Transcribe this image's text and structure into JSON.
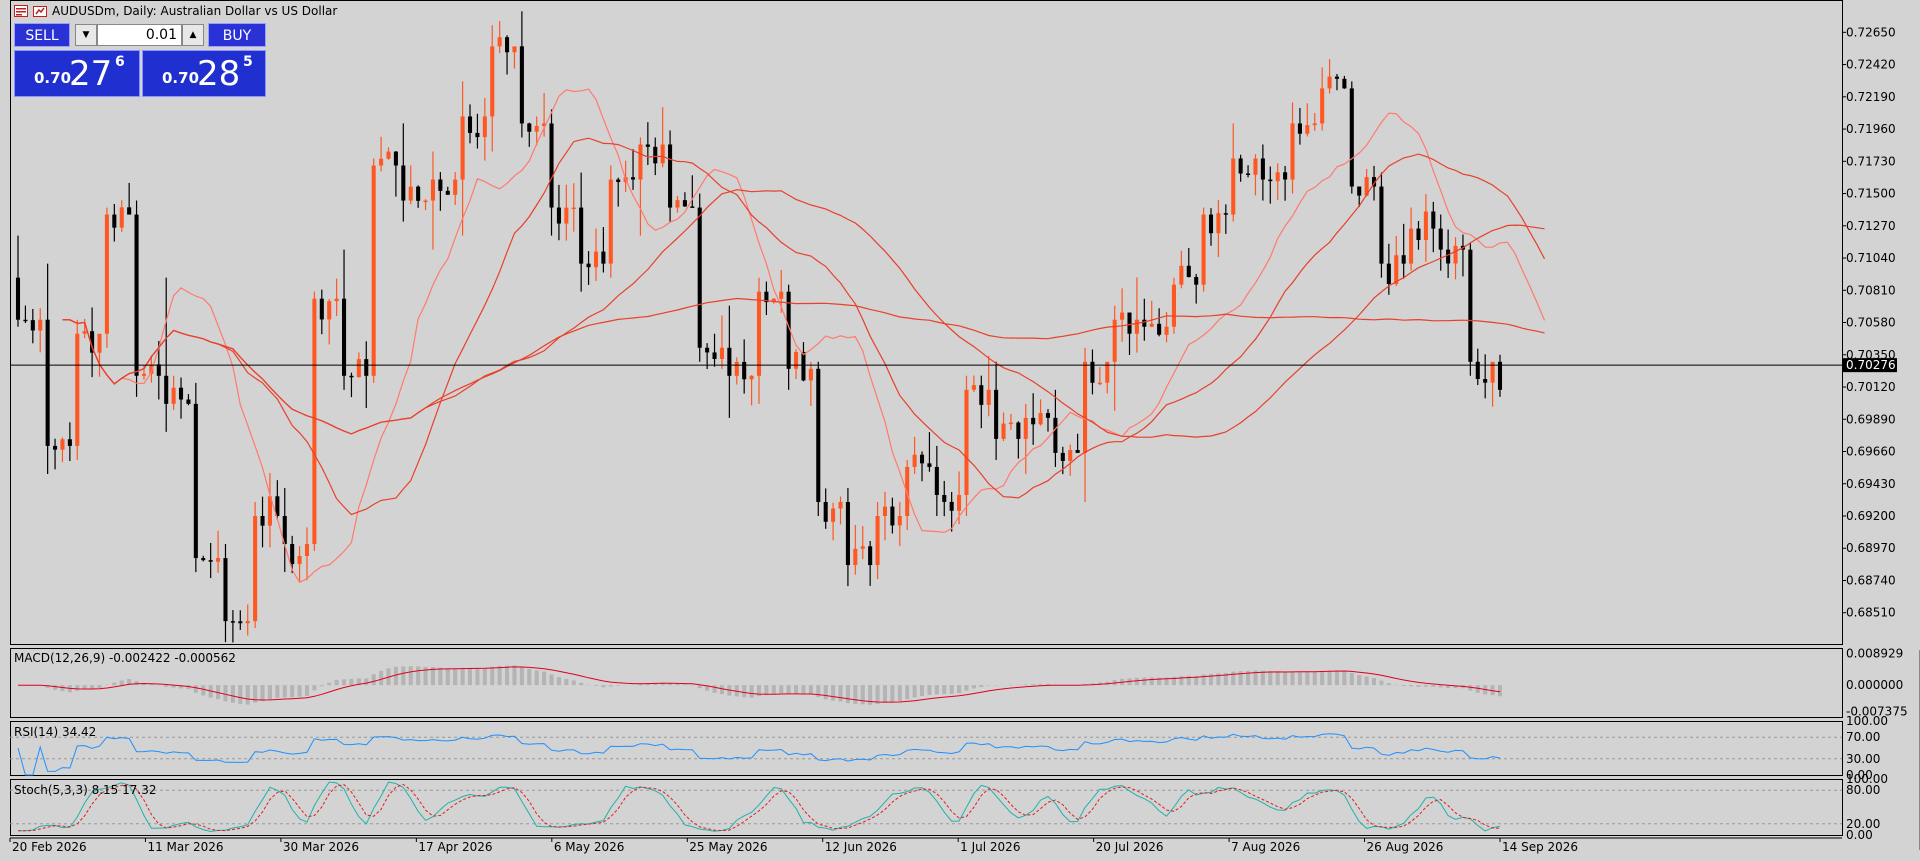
{
  "title_bar": {
    "symbol_title": "AUDUSDm, Daily:  Australian Dollar vs US Dollar",
    "icons": [
      "chart-window-icon",
      "symbol-info-icon"
    ]
  },
  "trade_panel": {
    "sell_label": "SELL",
    "buy_label": "BUY",
    "lot_value": "0.01",
    "lot_down_icon": "triangle-down",
    "lot_up_icon": "triangle-up",
    "sell_price": {
      "prefix": "0.70",
      "big": "27",
      "sup": "6"
    },
    "buy_price": {
      "prefix": "0.70",
      "big": "28",
      "sup": "5"
    }
  },
  "current_price_label": "0.70276",
  "colors": {
    "background": "#d3d3d3",
    "bull_candle": "#ff5722",
    "bear_candle": "#000000",
    "ma_line": "#e8402a",
    "ma_fast_line": "#ff7a6e",
    "macd_histogram": "#b4b4b4",
    "macd_signal": "#e0001a",
    "rsi_line": "#1e90ff",
    "stoch_main": "#20b2aa",
    "stoch_signal": "#e02020"
  },
  "price_axis": {
    "labels": [
      "0.72650",
      "0.72420",
      "0.72190",
      "0.71960",
      "0.71730",
      "0.71500",
      "0.71270",
      "0.71040",
      "0.70810",
      "0.70580",
      "0.70350",
      "0.70120",
      "0.69890",
      "0.69660",
      "0.69430",
      "0.69200",
      "0.68970",
      "0.68740",
      "0.68510"
    ],
    "range": [
      0.68287,
      0.72852
    ]
  },
  "date_axis": {
    "labels": [
      "20 Feb 2026",
      "11 Mar 2026",
      "30 Mar 2026",
      "17 Apr 2026",
      "6 May 2026",
      "25 May 2026",
      "12 Jun 2026",
      "1 Jul 2026",
      "20 Jul 2026",
      "7 Aug 2026",
      "26 Aug 2026",
      "14 Sep 2026"
    ]
  },
  "indicators": {
    "macd": {
      "label": "MACD(12,26,9) -0.002422 -0.000562",
      "axis_labels": [
        "0.008929",
        "0.000000",
        "-0.007375"
      ],
      "range": [
        -0.009,
        0.0105
      ]
    },
    "rsi": {
      "label": "RSI(14) 34.42",
      "axis_labels": [
        "100.00",
        "70.00",
        "30.00",
        "0.00"
      ],
      "levels": [
        70,
        30
      ],
      "range": [
        0,
        100
      ]
    },
    "stoch": {
      "label": "Stoch(5,3,3) 8.15 17.32",
      "axis_labels": [
        "100.00",
        "80.00",
        "20.00",
        "0.00"
      ],
      "levels": [
        80,
        20
      ],
      "range": [
        0,
        100
      ]
    }
  },
  "chart_data": {
    "type": "candlestick",
    "anchors": [
      [
        0.709,
        0.712,
        0.7055,
        0.706
      ],
      [
        0.706,
        0.71,
        0.695,
        0.697
      ],
      [
        0.697,
        0.706,
        0.696,
        0.705
      ],
      [
        0.705,
        0.714,
        0.704,
        0.7135
      ],
      [
        0.7135,
        0.7145,
        0.7005,
        0.702
      ],
      [
        0.702,
        0.709,
        0.698,
        0.7
      ],
      [
        0.7,
        0.7015,
        0.688,
        0.689
      ],
      [
        0.689,
        0.69,
        0.683,
        0.6845
      ],
      [
        0.6845,
        0.693,
        0.684,
        0.692
      ],
      [
        0.692,
        0.694,
        0.688,
        0.69
      ],
      [
        0.69,
        0.708,
        0.6895,
        0.7075
      ],
      [
        0.7075,
        0.711,
        0.701,
        0.702
      ],
      [
        0.702,
        0.7175,
        0.7015,
        0.717
      ],
      [
        0.717,
        0.72,
        0.713,
        0.7145
      ],
      [
        0.7145,
        0.718,
        0.711,
        0.716
      ],
      [
        0.716,
        0.723,
        0.712,
        0.7205
      ],
      [
        0.7205,
        0.727,
        0.718,
        0.7255
      ],
      [
        0.7255,
        0.728,
        0.719,
        0.72
      ],
      [
        0.72,
        0.721,
        0.712,
        0.714
      ],
      [
        0.714,
        0.7165,
        0.708,
        0.71
      ],
      [
        0.71,
        0.717,
        0.709,
        0.716
      ],
      [
        0.716,
        0.719,
        0.712,
        0.7185
      ],
      [
        0.7185,
        0.7195,
        0.713,
        0.714
      ],
      [
        0.714,
        0.715,
        0.703,
        0.704
      ],
      [
        0.704,
        0.707,
        0.699,
        0.702
      ],
      [
        0.702,
        0.709,
        0.7,
        0.708
      ],
      [
        0.708,
        0.7085,
        0.701,
        0.7025
      ],
      [
        0.7025,
        0.703,
        0.692,
        0.693
      ],
      [
        0.693,
        0.694,
        0.687,
        0.6885
      ],
      [
        0.6885,
        0.693,
        0.6875,
        0.692
      ],
      [
        0.692,
        0.696,
        0.691,
        0.6955
      ],
      [
        0.6955,
        0.697,
        0.692,
        0.6935
      ],
      [
        0.6935,
        0.702,
        0.692,
        0.701
      ],
      [
        0.701,
        0.703,
        0.696,
        0.6975
      ],
      [
        0.6975,
        0.7,
        0.695,
        0.699
      ],
      [
        0.699,
        0.701,
        0.6955,
        0.6965
      ],
      [
        0.6965,
        0.704,
        0.693,
        0.703
      ],
      [
        0.703,
        0.707,
        0.6995,
        0.706
      ],
      [
        0.706,
        0.7075,
        0.7045,
        0.7055
      ],
      [
        0.7055,
        0.709,
        0.705,
        0.7085
      ],
      [
        0.7085,
        0.714,
        0.708,
        0.7135
      ],
      [
        0.7135,
        0.72,
        0.713,
        0.7175
      ],
      [
        0.7175,
        0.7185,
        0.7145,
        0.716
      ],
      [
        0.716,
        0.7215,
        0.715,
        0.72
      ],
      [
        0.72,
        0.724,
        0.7195,
        0.7225
      ],
      [
        0.7225,
        0.723,
        0.715,
        0.7155
      ],
      [
        0.7155,
        0.7165,
        0.709,
        0.71
      ],
      [
        0.71,
        0.714,
        0.7095,
        0.7125
      ],
      [
        0.7125,
        0.7135,
        0.7095,
        0.711
      ],
      [
        0.711,
        0.7115,
        0.702,
        0.703
      ],
      [
        0.703,
        0.7035,
        0.7005,
        0.701
      ]
    ],
    "moving_averages": [
      {
        "role": "fast",
        "x_end_fraction": 0.815
      },
      {
        "role": "medium",
        "x_end_fraction": 0.795
      },
      {
        "role": "slow",
        "x_end_fraction": 0.78
      },
      {
        "role": "slowest",
        "x_end_fraction": 0.781
      }
    ]
  }
}
